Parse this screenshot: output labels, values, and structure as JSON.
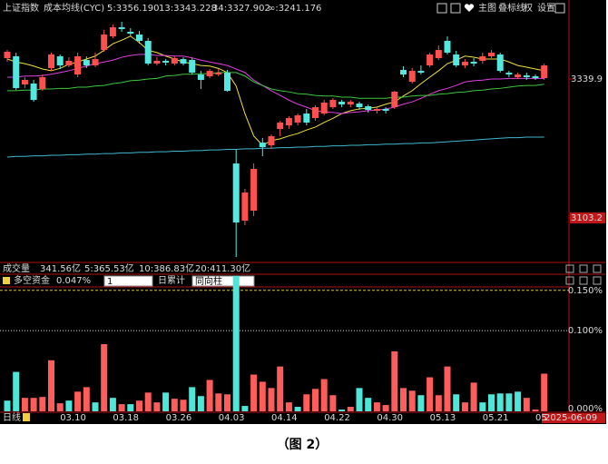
{
  "header": {
    "title": "上证指数",
    "indicator": "成本均线(CYC)",
    "buttons": [
      "主图",
      "叠标线",
      "权",
      "设置"
    ]
  },
  "volume": {
    "label": "成交量",
    "value": "341.56亿",
    "ma": [
      "5:365.53亿",
      "10:386.83亿",
      "20:411.30亿"
    ]
  },
  "controls": {
    "period": "1",
    "mode": "日累计",
    "style": "同向柱"
  },
  "footer": {
    "period": "日线",
    "date": "2025-06-09"
  },
  "caption": "（图 2）",
  "chart_data": [
    {
      "type": "candlestick",
      "categories": [
        null,
        null,
        null,
        null,
        null,
        null,
        "03.10",
        null,
        null,
        null,
        null,
        null,
        "03.18",
        null,
        null,
        null,
        null,
        null,
        "03.26",
        null,
        null,
        null,
        null,
        null,
        "04.03",
        null,
        null,
        null,
        null,
        null,
        "04.14",
        null,
        null,
        null,
        null,
        null,
        "04.22",
        null,
        null,
        null,
        null,
        null,
        "04.30",
        null,
        null,
        null,
        null,
        null,
        "05.13",
        null,
        null,
        null,
        null,
        null,
        "05.21",
        null,
        null,
        null,
        null,
        null,
        "05",
        null
      ],
      "open": [
        3375.5,
        3378.6,
        3330.6,
        3332.2,
        3322.9,
        3358.5,
        3378.6,
        3363.1,
        3347.6,
        3372.4,
        3363.1,
        3389.4,
        3412.6,
        3428.1,
        3420.4,
        3415.7,
        3404.9,
        3366.2,
        3370.9,
        3366.2,
        3373.9,
        3372.4,
        3347.6,
        3344.6,
        3347.6,
        3350.7,
        3196.0,
        3098.6,
        3115.6,
        3231.6,
        3227.0,
        3254.8,
        3261.0,
        3265.7,
        3281.1,
        3273.4,
        3281.1,
        3291.9,
        3301.2,
        3296.6,
        3298.1,
        3293.5,
        3285.8,
        3288.9,
        3291.9,
        3355.4,
        3335.3,
        3353.8,
        3363.1,
        3375.5,
        3404.9,
        3381.7,
        3363.1,
        3369.3,
        3370.9,
        3378.6,
        3381.7,
        3350.7,
        3343.0,
        3346.1,
        3344.6,
        3341.5
      ],
      "high": [
        3389.4,
        3384.8,
        3343.0,
        3338.4,
        3347.6,
        3384.8,
        3381.7,
        3377.0,
        3384.8,
        3378.6,
        3384.8,
        3423.4,
        3432.7,
        3437.4,
        3426.5,
        3421.9,
        3409.5,
        3377.0,
        3373.9,
        3378.6,
        3377.0,
        3375.5,
        3353.8,
        3356.9,
        3356.9,
        3355.4,
        3219.3,
        3152.7,
        3196.0,
        3239.4,
        3245.5,
        3268.7,
        3276.5,
        3281.1,
        3288.9,
        3295.0,
        3304.3,
        3307.4,
        3304.3,
        3304.3,
        3301.2,
        3296.6,
        3293.5,
        3291.9,
        3319.8,
        3361.6,
        3358.5,
        3363.1,
        3384.8,
        3397.2,
        3412.6,
        3387.9,
        3373.9,
        3375.5,
        3384.8,
        3389.4,
        3384.8,
        3353.8,
        3350.7,
        3350.7,
        3347.6,
        3366.2
      ],
      "low": [
        3369.3,
        3321.3,
        3324.4,
        3301.2,
        3319.8,
        3353.8,
        3356.9,
        3360.0,
        3343.0,
        3358.5,
        3360.0,
        3386.3,
        3409.5,
        3420.4,
        3412.6,
        3400.2,
        3363.1,
        3363.1,
        3363.1,
        3363.1,
        3363.1,
        3347.6,
        3322.9,
        3341.5,
        3344.6,
        3318.3,
        3036.7,
        3090.8,
        3106.3,
        3208.4,
        3220.8,
        3242.5,
        3254.8,
        3261.0,
        3261.0,
        3268.7,
        3278.0,
        3288.9,
        3291.9,
        3291.9,
        3287.3,
        3282.7,
        3281.1,
        3281.1,
        3288.9,
        3343.0,
        3332.2,
        3347.6,
        3360.0,
        3372.4,
        3381.7,
        3360.0,
        3358.5,
        3361.6,
        3366.2,
        3375.5,
        3350.7,
        3343.0,
        3339.9,
        3338.4,
        3338.4,
        3338.4
      ],
      "close": [
        3386.3,
        3324.4,
        3338.4,
        3304.3,
        3343.0,
        3381.7,
        3363.1,
        3370.9,
        3378.6,
        3363.1,
        3373.9,
        3415.7,
        3428.1,
        3425.0,
        3417.3,
        3404.9,
        3366.2,
        3370.9,
        3367.8,
        3375.5,
        3366.2,
        3350.7,
        3338.4,
        3353.8,
        3350.7,
        3319.8,
        3095.5,
        3146.5,
        3186.8,
        3223.9,
        3242.5,
        3265.7,
        3273.4,
        3278.0,
        3265.7,
        3291.9,
        3299.7,
        3304.3,
        3296.6,
        3301.2,
        3291.9,
        3287.3,
        3288.9,
        3285.8,
        3318.3,
        3347.6,
        3353.8,
        3350.7,
        3381.7,
        3389.4,
        3384.8,
        3363.1,
        3369.3,
        3366.2,
        3378.6,
        3384.8,
        3353.8,
        3347.6,
        3347.6,
        3343.0,
        3341.5,
        3363.1
      ],
      "up_color": "#ff4f4f",
      "down_color": "#54e8e0",
      "series": [
        {
          "name": "5:3356.190",
          "color": "#f0e040",
          "values": [
            3374,
            3369,
            3366,
            3362,
            3357,
            3354,
            3358,
            3365,
            3369,
            3374,
            3379,
            3389,
            3400,
            3406,
            3413,
            3402,
            3389,
            3385,
            3379,
            3374,
            3369,
            3366,
            3363,
            3362,
            3358,
            3351,
            3328,
            3281,
            3243,
            3227,
            3235,
            3238,
            3243,
            3247,
            3253,
            3258,
            3266,
            3273,
            3281,
            3286,
            3289,
            3290,
            3292,
            3297,
            3301,
            3311,
            3320,
            3332,
            3343,
            3354,
            3366,
            3372,
            3379,
            3377,
            3374,
            3374,
            3374,
            3369,
            3363,
            3360,
            3357,
            3354
          ]
        },
        {
          "name": "13:3343.228",
          "color": "#e040e0",
          "values": [
            3343,
            3343,
            3345,
            3345,
            3346,
            3348,
            3351,
            3354,
            3358,
            3362,
            3366,
            3369,
            3372,
            3377,
            3380,
            3382,
            3382,
            3380,
            3380,
            3379,
            3379,
            3376,
            3372,
            3369,
            3366,
            3363,
            3357,
            3351,
            3338,
            3329,
            3320,
            3312,
            3304,
            3297,
            3292,
            3286,
            3284,
            3283,
            3281,
            3283,
            3284,
            3286,
            3287,
            3289,
            3292,
            3297,
            3301,
            3307,
            3314,
            3320,
            3324,
            3329,
            3335,
            3337,
            3338,
            3340,
            3340,
            3341,
            3341,
            3341,
            3341,
            3341
          ]
        },
        {
          "name": "34:3327.902",
          "color": "#3cc83c",
          "values": [
            3320,
            3320,
            3321,
            3321,
            3323,
            3323,
            3324,
            3324,
            3326,
            3326,
            3328,
            3329,
            3332,
            3334,
            3337,
            3338,
            3340,
            3341,
            3345,
            3346,
            3348,
            3348,
            3349,
            3349,
            3351,
            3351,
            3351,
            3345,
            3335,
            3329,
            3323,
            3320,
            3318,
            3315,
            3314,
            3312,
            3311,
            3311,
            3309,
            3309,
            3307,
            3307,
            3307,
            3307,
            3309,
            3309,
            3311,
            3312,
            3312,
            3314,
            3315,
            3317,
            3318,
            3320,
            3321,
            3323,
            3324,
            3326,
            3328,
            3329,
            3329,
            3331
          ]
        },
        {
          "name": "∞:3241.176",
          "color": "#3fb8d0",
          "values": [
            3207,
            3208,
            3208,
            3209,
            3209,
            3210,
            3210,
            3211,
            3211,
            3212,
            3212,
            3213,
            3213,
            3214,
            3214,
            3215,
            3215,
            3216,
            3216,
            3217,
            3217,
            3218,
            3218,
            3219,
            3219,
            3220,
            3220,
            3221,
            3221,
            3222,
            3222,
            3223,
            3223,
            3224,
            3224,
            3225,
            3225,
            3226,
            3226,
            3227,
            3227,
            3228,
            3228,
            3229,
            3229,
            3230,
            3230,
            3231,
            3231,
            3232,
            3233,
            3234,
            3235,
            3236,
            3237,
            3238,
            3239,
            3240,
            3240,
            3241,
            3241,
            3241
          ]
        }
      ],
      "ylim": [
        3029,
        3446.7
      ],
      "yticks": [
        3339.9,
        3103.2
      ]
    },
    {
      "type": "bar",
      "title": "多空资金",
      "value_label": "0.047%",
      "values": [
        0.0133,
        0.0489,
        0.0167,
        0.0167,
        0.0178,
        0.0633,
        0.01,
        0.0133,
        0.0244,
        0.03,
        0.0111,
        0.0833,
        0.0167,
        0.0089,
        0.0089,
        0.0133,
        0.0233,
        0.0111,
        0.0233,
        0.0156,
        0.0144,
        0.03,
        0.0189,
        0.0389,
        0.0222,
        0.0211,
        0.168,
        0.0067,
        0.0456,
        0.0367,
        0.0289,
        0.0556,
        0.0111,
        0.0056,
        0.0211,
        0.0278,
        0.04,
        0.02,
        0.0022,
        0.0056,
        0.0289,
        0.0167,
        0.0111,
        0.0078,
        0.0744,
        0.0289,
        0.0256,
        0.02,
        0.0422,
        0.02,
        0.0556,
        0.0211,
        0.0111,
        0.0356,
        0.0111,
        0.0211,
        0.0222,
        0.0222,
        0.0244,
        0.0167,
        0.0022,
        0.0467
      ],
      "colors": [
        "#4ee6d8",
        "#4ee6d8",
        "#ff5c5c",
        "#ff5c5c",
        "#ff5c5c",
        "#ff5c5c",
        "#ff5c5c",
        "#4ee6d8",
        "#ff5c5c",
        "#ff5c5c",
        "#4ee6d8",
        "#ff5c5c",
        "#4ee6d8",
        "#ff5c5c",
        "#4ee6d8",
        "#ff5c5c",
        "#ff5c5c",
        "#ff5c5c",
        "#4ee6d8",
        "#ff5c5c",
        "#ff5c5c",
        "#4ee6d8",
        "#4ee6d8",
        "#ff5c5c",
        "#ff5c5c",
        "#ff5c5c",
        "#4ee6d8",
        "#4ee6d8",
        "#ff5c5c",
        "#ff5c5c",
        "#ff5c5c",
        "#ff5c5c",
        "#ff5c5c",
        "#4ee6d8",
        "#ff5c5c",
        "#ff5c5c",
        "#ff5c5c",
        "#ff5c5c",
        "#4ee6d8",
        "#ff5c5c",
        "#4ee6d8",
        "#4ee6d8",
        "#ff5c5c",
        "#ff5c5c",
        "#ff5c5c",
        "#ff5c5c",
        "#ff5c5c",
        "#4ee6d8",
        "#ff5c5c",
        "#ff5c5c",
        "#ff5c5c",
        "#4ee6d8",
        "#ff5c5c",
        "#ff5c5c",
        "#4ee6d8",
        "#4ee6d8",
        "#4ee6d8",
        "#4ee6d8",
        "#4ee6d8",
        "#ff5c5c",
        "#ff5c5c",
        "#ff5c5c"
      ],
      "ylim": [
        0,
        0.17
      ],
      "yticks": [
        {
          "value": 0,
          "label": "0.000%"
        },
        {
          "value": 0.1,
          "label": "0.100%"
        },
        {
          "value": 0.15,
          "label": "0.150%"
        }
      ]
    }
  ]
}
